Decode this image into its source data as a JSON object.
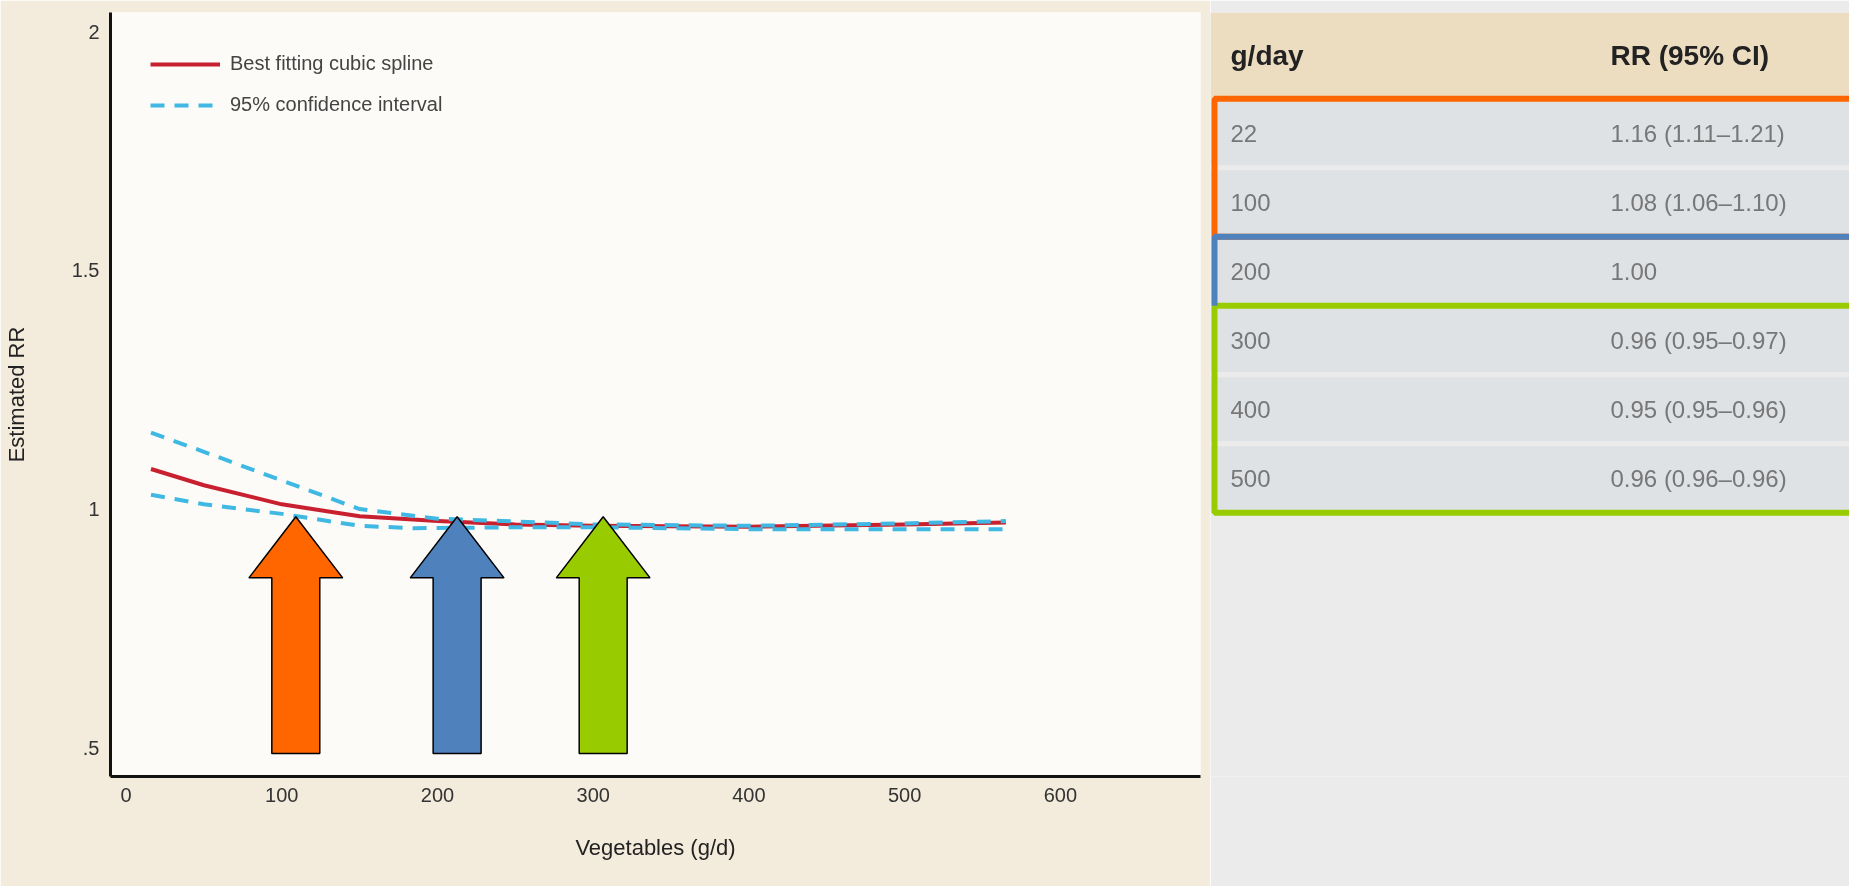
{
  "chart_data": [
    {
      "type": "line",
      "xlabel": "Vegetables (g/d)",
      "ylabel": "Estimated RR",
      "xlim": [
        -10,
        690
      ],
      "xticks": [
        0,
        100,
        200,
        300,
        400,
        500,
        600
      ],
      "ylim": [
        0.44,
        2.04
      ],
      "yticks": [
        {
          "value": 0.5,
          "label": ".5"
        },
        1,
        1.5,
        2
      ],
      "legend": "top left",
      "grid": false,
      "series": [
        {
          "name": "Best fitting cubic spline",
          "color": "#c8202f",
          "line_style": "solid",
          "x": [
            16,
            50,
            100,
            150,
            200,
            250,
            300,
            400,
            500,
            565
          ],
          "values": [
            1.084,
            1.05,
            1.01,
            0.985,
            0.975,
            0.968,
            0.965,
            0.963,
            0.968,
            0.972
          ]
        },
        {
          "name": "95% confidence interval",
          "color": "#3fb8e3",
          "line_style": "dashed",
          "x": [
            16,
            50,
            100,
            150,
            200,
            300,
            400,
            500,
            565
          ],
          "values": [
            1.16,
            1.12,
            1.06,
            1.0,
            0.98,
            0.968,
            0.965,
            0.97,
            0.975
          ]
        },
        {
          "color": "#3fb8e3",
          "line_style": "dashed",
          "x": [
            16,
            50,
            100,
            150,
            185,
            250,
            300,
            400,
            500,
            565
          ],
          "values": [
            1.03,
            1.01,
            0.99,
            0.965,
            0.96,
            0.962,
            0.962,
            0.958,
            0.958,
            0.958
          ]
        }
      ]
    },
    {
      "type": "other",
      "annotations": [
        "g/day",
        "RR (95% CI)"
      ],
      "categories": [
        "22",
        "100",
        "200",
        "300",
        "400",
        "500"
      ],
      "value_labels": [
        "1.16 (1.11–1.21)",
        "1.08 (1.06–1.10)",
        "1.00",
        "0.96 (0.95–0.97)",
        "0.95 (0.95–0.96)",
        "0.96 (0.96–0.96)"
      ]
    }
  ]
}
